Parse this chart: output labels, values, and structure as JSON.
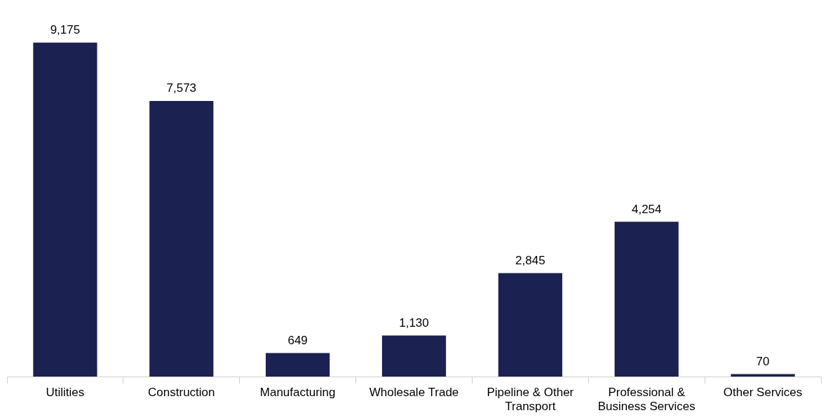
{
  "chart_data": {
    "type": "bar",
    "categories": [
      "Utilities",
      "Construction",
      "Manufacturing",
      "Wholesale Trade",
      "Pipeline & Other Transport",
      "Professional & Business Services",
      "Other Services"
    ],
    "values": [
      9175,
      7573,
      649,
      1130,
      2845,
      4254,
      70
    ],
    "value_labels": [
      "9,175",
      "7,573",
      "649",
      "1,130",
      "2,845",
      "4,254",
      "70"
    ],
    "color": "#1b2150",
    "legend": false
  }
}
